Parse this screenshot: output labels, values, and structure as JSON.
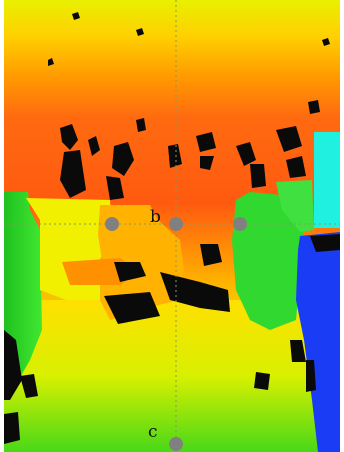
{
  "image": {
    "kind": "depth-map",
    "palette": {
      "near": "#10d010",
      "mid": "#e8f000",
      "far": "#ff5a10",
      "hole": "#0a0a0a",
      "right_object_blue": "#1a3cf5",
      "right_object_cyan": "#20f0e0",
      "marker": "#808080",
      "guide_line": "#8a9a5a"
    }
  },
  "markers": [
    {
      "id": "left",
      "label": ""
    },
    {
      "id": "b",
      "label": "b"
    },
    {
      "id": "right",
      "label": ""
    },
    {
      "id": "c",
      "label": "c"
    }
  ],
  "labels": {
    "b": "b",
    "c": "c"
  }
}
